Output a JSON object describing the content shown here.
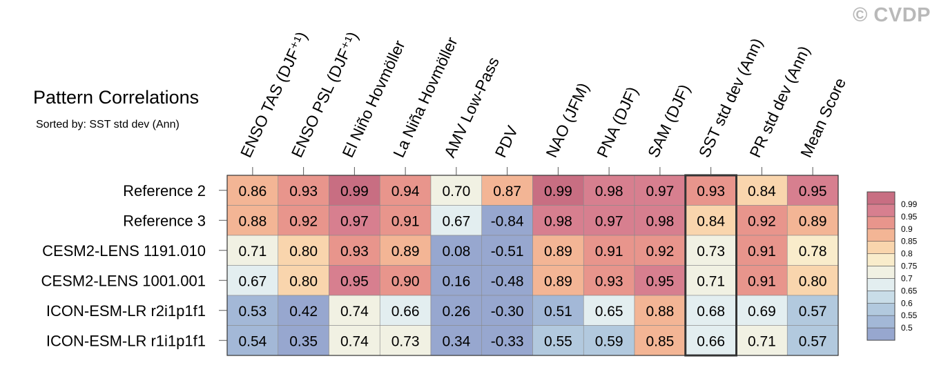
{
  "watermark": "© CVDP",
  "chart_data": {
    "type": "heatmap",
    "title": "Pattern Correlations",
    "subtitle": "Sorted by: SST std dev (Ann)",
    "columns": [
      "ENSO TAS (DJF⁺¹)",
      "ENSO PSL (DJF⁺¹)",
      "El Niño Hovmöller",
      "La Niña Hovmöller",
      "AMV Low-Pass",
      "PDV",
      "NAO (JFM)",
      "PNA (DJF)",
      "SAM (DJF)",
      "SST std dev (Ann)",
      "PR std dev (Ann)",
      "Mean Score"
    ],
    "rows": [
      "Reference 2",
      "Reference 3",
      "CESM2-LENS 1191.010",
      "CESM2-LENS 1001.001",
      "ICON-ESM-LR r2i1p1f1",
      "ICON-ESM-LR r1i1p1f1"
    ],
    "values": [
      [
        0.86,
        0.93,
        0.99,
        0.94,
        0.7,
        0.87,
        0.99,
        0.98,
        0.97,
        0.93,
        0.84,
        0.95
      ],
      [
        0.88,
        0.92,
        0.97,
        0.91,
        0.67,
        -0.84,
        0.98,
        0.97,
        0.98,
        0.84,
        0.92,
        0.89
      ],
      [
        0.71,
        0.8,
        0.93,
        0.89,
        0.08,
        -0.51,
        0.89,
        0.91,
        0.92,
        0.73,
        0.91,
        0.78
      ],
      [
        0.67,
        0.8,
        0.95,
        0.9,
        0.16,
        -0.48,
        0.89,
        0.93,
        0.95,
        0.71,
        0.91,
        0.8
      ],
      [
        0.53,
        0.42,
        0.74,
        0.66,
        0.26,
        -0.3,
        0.51,
        0.65,
        0.88,
        0.68,
        0.69,
        0.57
      ],
      [
        0.54,
        0.35,
        0.74,
        0.73,
        0.34,
        -0.33,
        0.55,
        0.59,
        0.85,
        0.66,
        0.71,
        0.57
      ]
    ],
    "cell_labels": [
      [
        "0.86",
        "0.93",
        "0.99",
        "0.94",
        "0.70",
        "0.87",
        "0.99",
        "0.98",
        "0.97",
        "0.93",
        "0.84",
        "0.95"
      ],
      [
        "0.88",
        "0.92",
        "0.97",
        "0.91",
        "0.67",
        "-0.84",
        "0.98",
        "0.97",
        "0.98",
        "0.84",
        "0.92",
        "0.89"
      ],
      [
        "0.71",
        "0.80",
        "0.93",
        "0.89",
        "0.08",
        "-0.51",
        "0.89",
        "0.91",
        "0.92",
        "0.73",
        "0.91",
        "0.78"
      ],
      [
        "0.67",
        "0.80",
        "0.95",
        "0.90",
        "0.16",
        "-0.48",
        "0.89",
        "0.93",
        "0.95",
        "0.71",
        "0.91",
        "0.80"
      ],
      [
        "0.53",
        "0.42",
        "0.74",
        "0.66",
        "0.26",
        "-0.30",
        "0.51",
        "0.65",
        "0.88",
        "0.68",
        "0.69",
        "0.57"
      ],
      [
        "0.54",
        "0.35",
        "0.74",
        "0.73",
        "0.34",
        "-0.33",
        "0.55",
        "0.59",
        "0.85",
        "0.66",
        "0.71",
        "0.57"
      ]
    ],
    "highlighted_column": "SST std dev (Ann)",
    "colorbar": {
      "levels": [
        0.5,
        0.55,
        0.6,
        0.65,
        0.7,
        0.75,
        0.8,
        0.85,
        0.9,
        0.95,
        0.99
      ],
      "labels": [
        "0.5",
        "0.55",
        "0.6",
        "0.65",
        "0.7",
        "0.75",
        "0.8",
        "0.85",
        "0.9",
        "0.95",
        "0.99"
      ],
      "colors": [
        "#97a7cf",
        "#a3b8d7",
        "#b2c9de",
        "#c9dde8",
        "#e3eef0",
        "#f1f1e3",
        "#f9eccb",
        "#f9d5ad",
        "#f3b595",
        "#e8958c",
        "#d77f8f",
        "#c86e82"
      ]
    }
  }
}
